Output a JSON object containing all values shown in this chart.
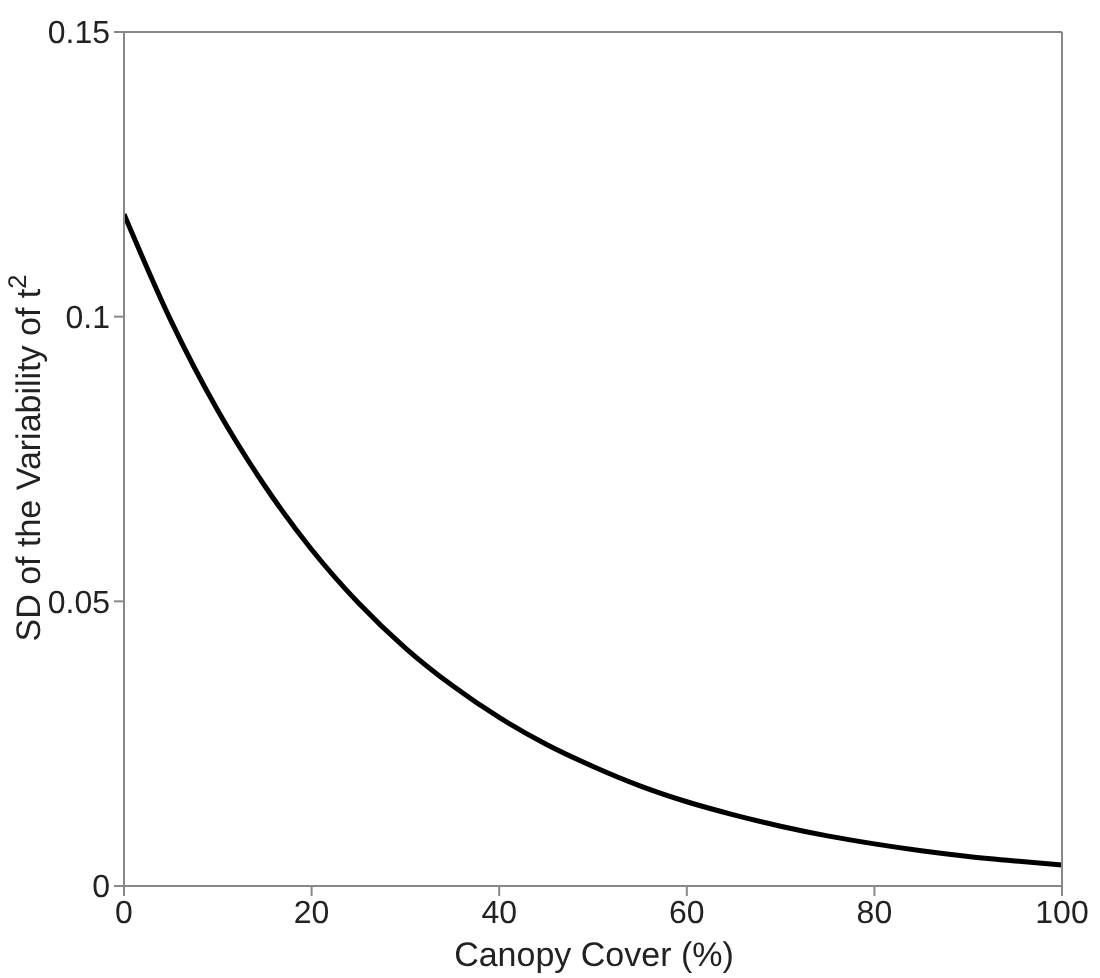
{
  "chart_data": {
    "type": "line",
    "xlabel": "Canopy Cover (%)",
    "ylabel": "SD of the Variability of t$^{2}$",
    "x": [
      0,
      5,
      10,
      15,
      20,
      25,
      30,
      35,
      40,
      45,
      50,
      55,
      60,
      65,
      70,
      75,
      80,
      85,
      90,
      95,
      100
    ],
    "series": [
      {
        "color": "#000000",
        "values": [
          0.118,
          0.0993,
          0.0835,
          0.0703,
          0.0591,
          0.0497,
          0.0418,
          0.0352,
          0.0296,
          0.0249,
          0.021,
          0.0176,
          0.0148,
          0.0125,
          0.0105,
          0.0088,
          0.0074,
          0.0062,
          0.0052,
          0.0044,
          0.0037
        ]
      }
    ],
    "xlim": [
      0,
      100
    ],
    "xticks": [
      0,
      20,
      40,
      60,
      80,
      100
    ],
    "ylim": [
      0,
      0.15
    ],
    "yticks": [
      0,
      0.05,
      0.1,
      0.15
    ],
    "grid": false,
    "marker": "none",
    "line_style": "solid"
  }
}
